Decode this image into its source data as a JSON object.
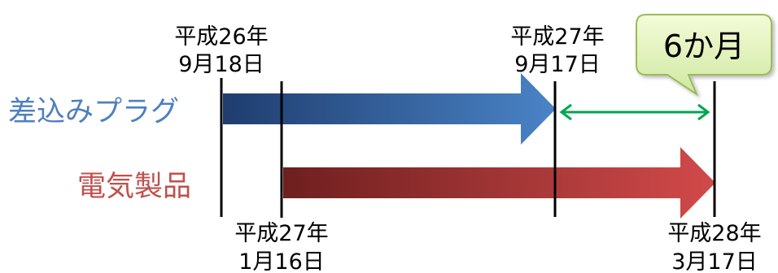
{
  "rows": [
    {
      "label": "差込みプラグ",
      "color": "#4f7fbf",
      "arrow_from": "#1f3d6e",
      "arrow_to": "#4a84c7"
    },
    {
      "label": "電気製品",
      "color": "#c0504d",
      "arrow_from": "#6e1f1f",
      "arrow_to": "#d24a4a"
    }
  ],
  "dates": {
    "plug_start": {
      "line1": "平成26年",
      "line2": "9月18日"
    },
    "plug_end": {
      "line1": "平成27年",
      "line2": "9月17日"
    },
    "product_start": {
      "line1": "平成27年",
      "line2": "1月16日"
    },
    "product_end": {
      "line1": "平成28年",
      "line2": "3月17日"
    }
  },
  "gap": {
    "label": "6か月",
    "arrow_color": "#00a651"
  },
  "callout": {
    "fill_from": "#f4fbd9",
    "fill_to": "#cfe8a0",
    "stroke": "#9bbb59"
  }
}
